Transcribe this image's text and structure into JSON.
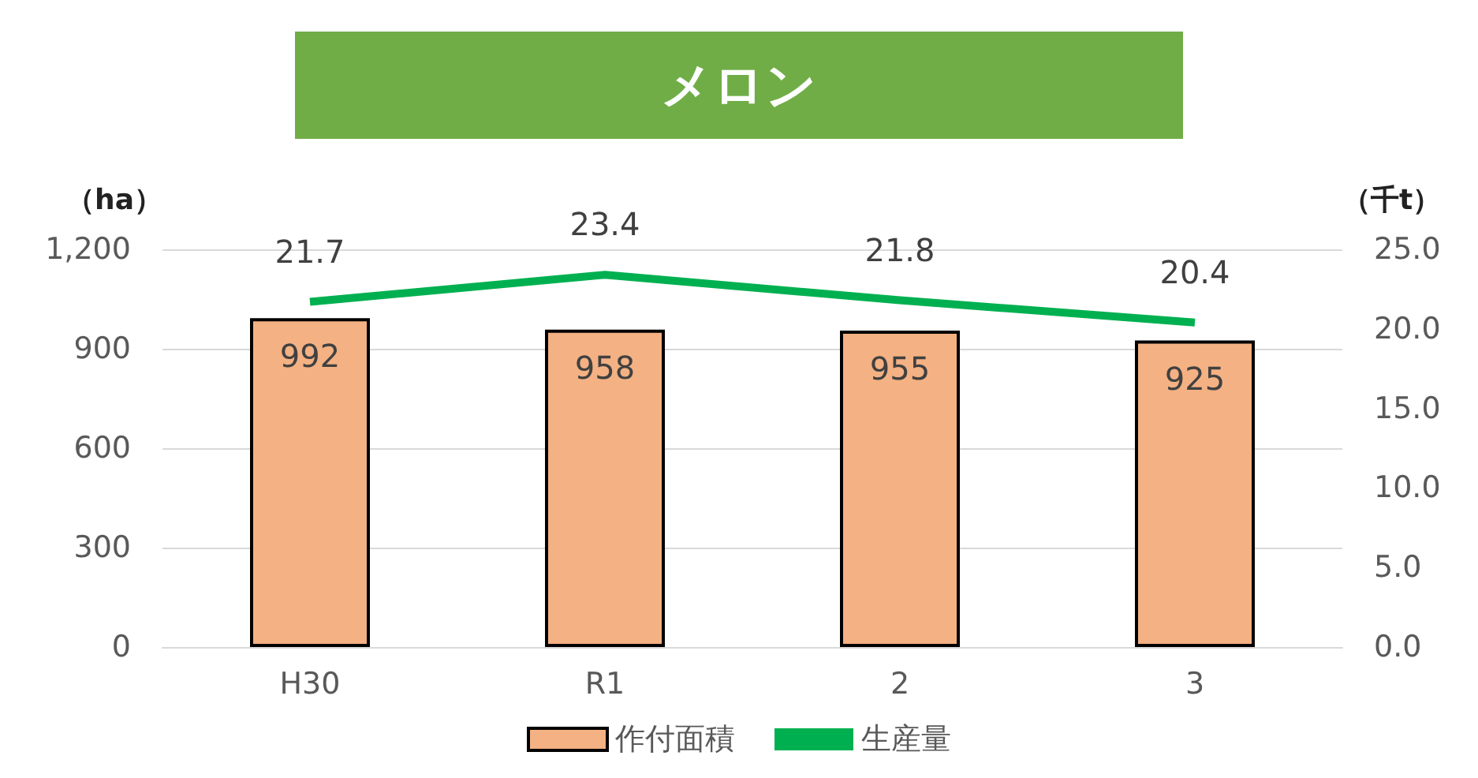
{
  "chart_data": {
    "type": "bar",
    "title": "メロン",
    "ylabel": "（ha）",
    "y2label": "（千t）",
    "categories": [
      "H30",
      "R1",
      "2",
      "3"
    ],
    "series": [
      {
        "name": "作付面積",
        "type": "bar",
        "color": "#f4b183",
        "values": [
          992,
          958,
          955,
          925
        ]
      },
      {
        "name": "生産量",
        "type": "line",
        "axis": "y2",
        "color": "#00b050",
        "values": [
          21.7,
          23.4,
          21.8,
          20.4
        ]
      }
    ],
    "ylim": [
      0,
      1200
    ],
    "yticks": [
      0,
      300,
      600,
      900,
      {
        "value": 1200,
        "label": "1,200"
      }
    ],
    "y2lim": [
      0,
      25
    ],
    "y2ticks": [
      {
        "value": 0,
        "label": "0.0"
      },
      {
        "value": 5,
        "label": "5.0"
      },
      {
        "value": 10,
        "label": "10.0"
      },
      {
        "value": 15,
        "label": "15.0"
      },
      {
        "value": 20,
        "label": "20.0"
      },
      {
        "value": 25,
        "label": "25.0"
      }
    ],
    "grid": "y",
    "legend": "bottom",
    "data_labels": true,
    "marker": "none"
  }
}
